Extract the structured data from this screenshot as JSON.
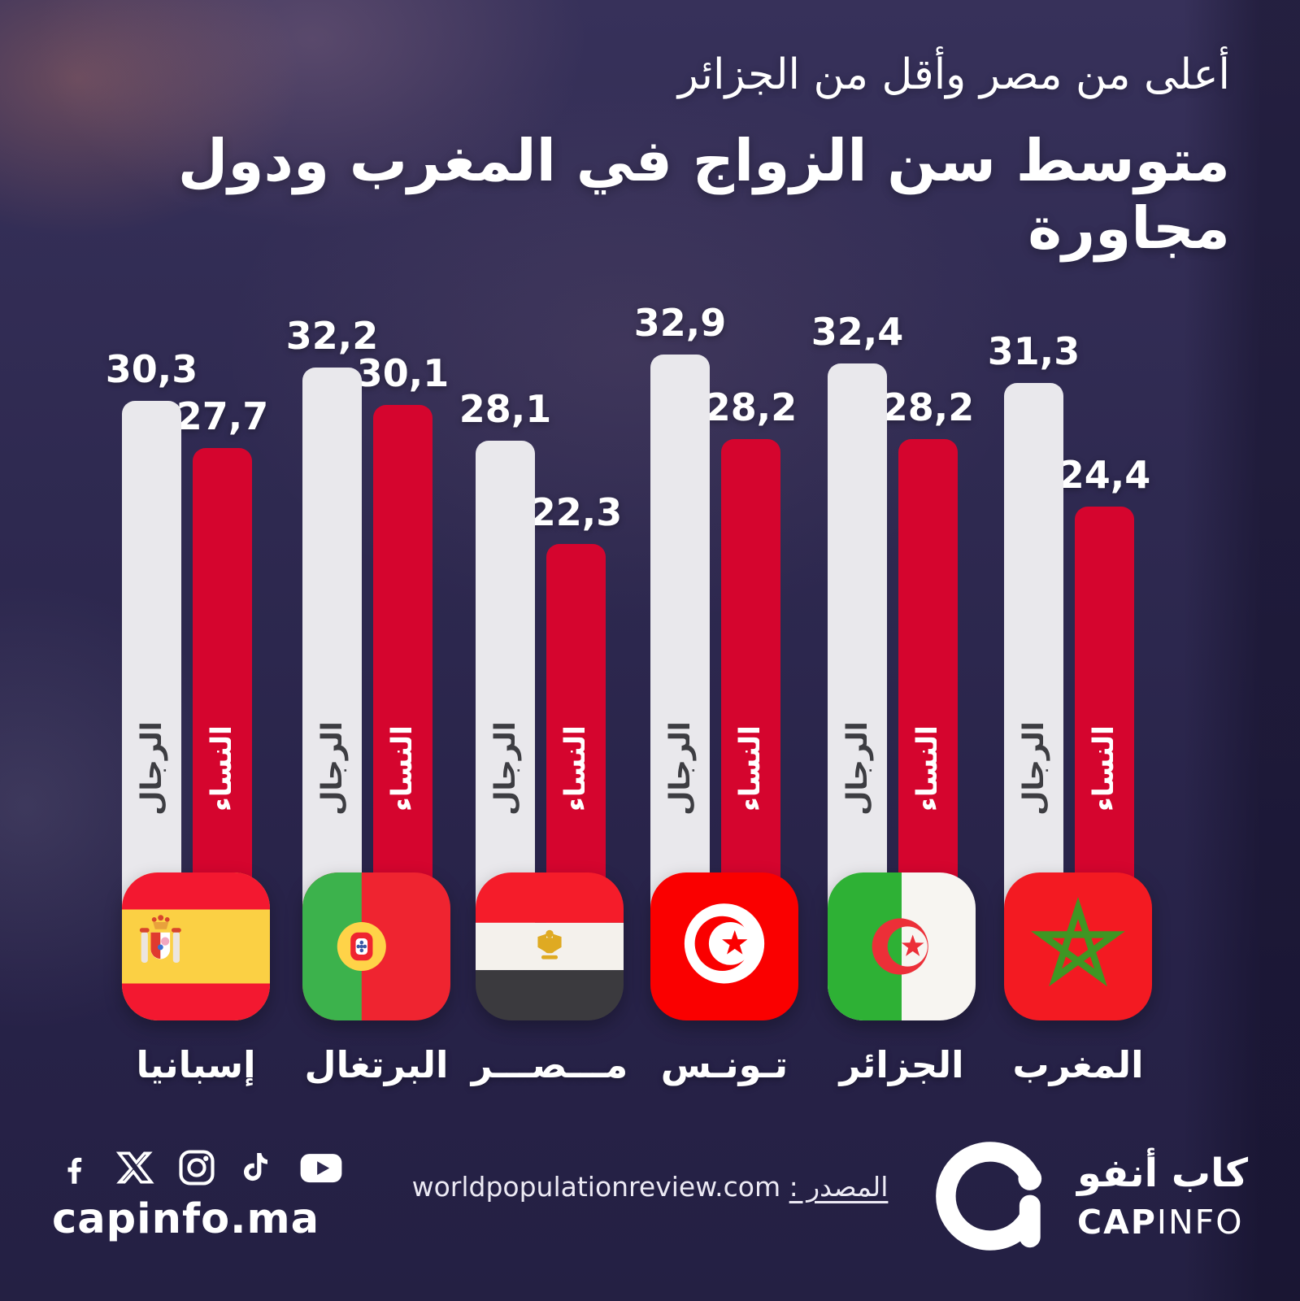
{
  "colors": {
    "background": "#2e2950",
    "bar_women": "#d5052e",
    "bar_men": "#e9e8ec",
    "text_light": "#ffffff",
    "text_dark": "#3d3d42"
  },
  "header": {
    "subtitle": "أعلى من مصر وأقل من الجزائر",
    "title": "متوسط سن الزواج في المغرب ودول مجاورة"
  },
  "chart_data": {
    "type": "bar",
    "title": "متوسط سن الزواج في المغرب ودول مجاورة",
    "subtitle": "أعلى من مصر وأقل من الجزائر",
    "categories": [
      "إسبانيا",
      "البرتغال",
      "مـــصـــر",
      "تـونـس",
      "الجزائر",
      "المغرب"
    ],
    "series": [
      {
        "name": "النساء",
        "color": "#d5052e",
        "values": [
          27.7,
          30.1,
          22.3,
          28.2,
          28.2,
          24.4
        ]
      },
      {
        "name": "الرجال",
        "color": "#e9e8ec",
        "values": [
          30.3,
          32.2,
          28.1,
          32.9,
          32.4,
          31.3
        ]
      }
    ],
    "ylim": [
      0,
      34
    ],
    "grid": false,
    "legend_position": "on-bars",
    "reading_direction": "rtl",
    "value_label_format": "decimal-comma"
  },
  "groups": [
    {
      "country": "إسبانيا",
      "flag": "spain-flag",
      "women_label": "27,7",
      "men_label": "30,3"
    },
    {
      "country": "البرتغال",
      "flag": "portugal-flag",
      "women_label": "30,1",
      "men_label": "32,2"
    },
    {
      "country": "مـــصـــر",
      "flag": "egypt-flag",
      "women_label": "22,3",
      "men_label": "28,1"
    },
    {
      "country": "تـونـس",
      "flag": "tunisia-flag",
      "women_label": "28,2",
      "men_label": "32,9"
    },
    {
      "country": "الجزائر",
      "flag": "algeria-flag",
      "women_label": "28,2",
      "men_label": "32,4"
    },
    {
      "country": "المغرب",
      "flag": "morocco-flag",
      "women_label": "24,4",
      "men_label": "31,3"
    }
  ],
  "bar_series_labels": {
    "women": "النساء",
    "men": "الرجال"
  },
  "footer": {
    "social_icons": [
      "facebook",
      "x",
      "instagram",
      "tiktok",
      "youtube"
    ],
    "website": "capinfo.ma",
    "source_label": "المصدر :",
    "source_value": "worldpopulationreview.com",
    "logo": {
      "arabic": "كاب أنفو",
      "latin_bold": "CAP",
      "latin_regular": "INFO"
    }
  }
}
